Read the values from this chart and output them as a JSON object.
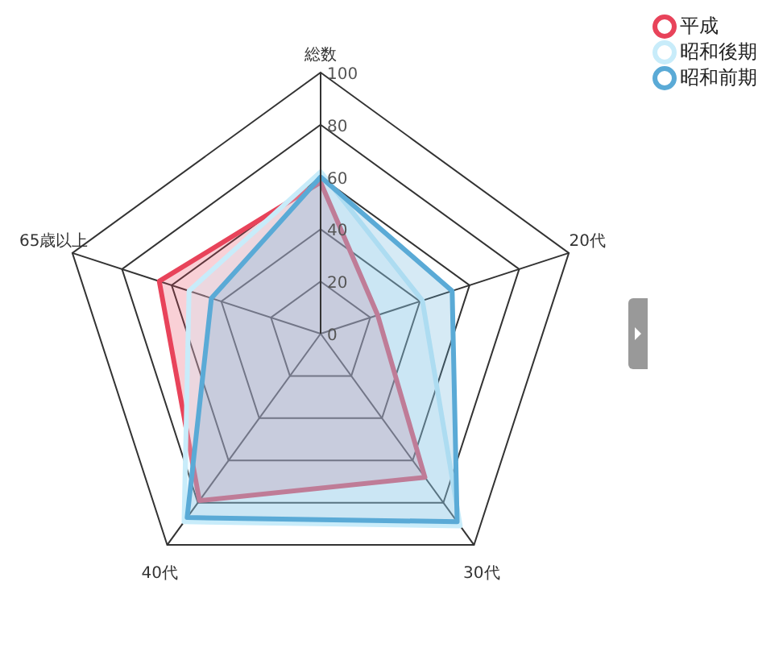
{
  "chart_data": {
    "type": "radar",
    "categories": [
      "総数",
      "20代",
      "30代",
      "40代",
      "65歳以上"
    ],
    "series": [
      {
        "name": "平成",
        "color": "#e8435a",
        "values": [
          58,
          23,
          68,
          79,
          65
        ]
      },
      {
        "name": "昭和後期",
        "color": "#c8ecfa",
        "values": [
          62,
          41,
          91,
          89,
          53
        ]
      },
      {
        "name": "昭和前期",
        "color": "#5aaad6",
        "values": [
          60,
          53,
          89,
          87,
          44
        ]
      }
    ],
    "ylim": [
      0,
      100
    ],
    "yticks": [
      0,
      20,
      40,
      60,
      80,
      100
    ],
    "grid": true,
    "legend": "top right"
  }
}
